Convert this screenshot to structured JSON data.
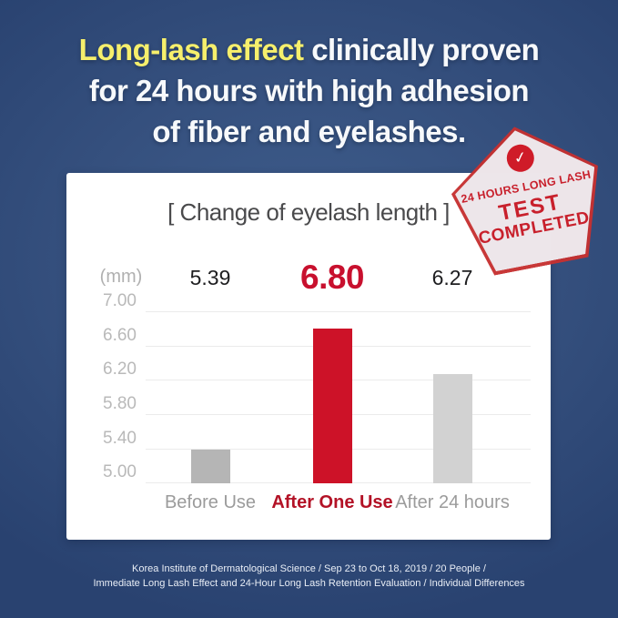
{
  "headline": {
    "highlight": "Long-lash effect",
    "rest_line1": " clinically proven",
    "line2": "for 24 hours with high adhesion",
    "line3": "of fiber and eyelashes.",
    "highlight_color": "#f6ef6c",
    "text_color": "#f7f9fb"
  },
  "stamp": {
    "check_icon": "✓",
    "line1": "24 HOURS LONG LASH",
    "line2": "TEST",
    "line3": "COMPLETED",
    "color": "#c8202c"
  },
  "chart_data": {
    "type": "bar",
    "title": "[ Change of eyelash length ]",
    "unit_label": "(mm)",
    "categories": [
      "Before Use",
      "After One Use",
      "After 24 hours"
    ],
    "values": [
      5.39,
      6.8,
      6.27
    ],
    "value_labels": [
      "5.39",
      "6.80",
      "6.27"
    ],
    "value_colors": [
      "#1e1e20",
      "#c8102e",
      "#1e1e20"
    ],
    "bar_colors": [
      "#b5b5b5",
      "#cd1228",
      "#d2d2d2"
    ],
    "xlabel_colors": [
      "#9b9b9b",
      "#b31226",
      "#9b9b9b"
    ],
    "highlight_index": 1,
    "yticks": [
      "7.00",
      "6.60",
      "6.20",
      "5.80",
      "5.40",
      "5.00"
    ],
    "ylim": [
      5.0,
      7.0
    ],
    "grid": true,
    "legend": false
  },
  "footer": {
    "line1": "Korea Institute of Dermatological Science / Sep 23 to Oct 18, 2019 / 20 People /",
    "line2": "Immediate Long Lash Effect and 24-Hour Long Lash Retention Evaluation / Individual Differences"
  }
}
